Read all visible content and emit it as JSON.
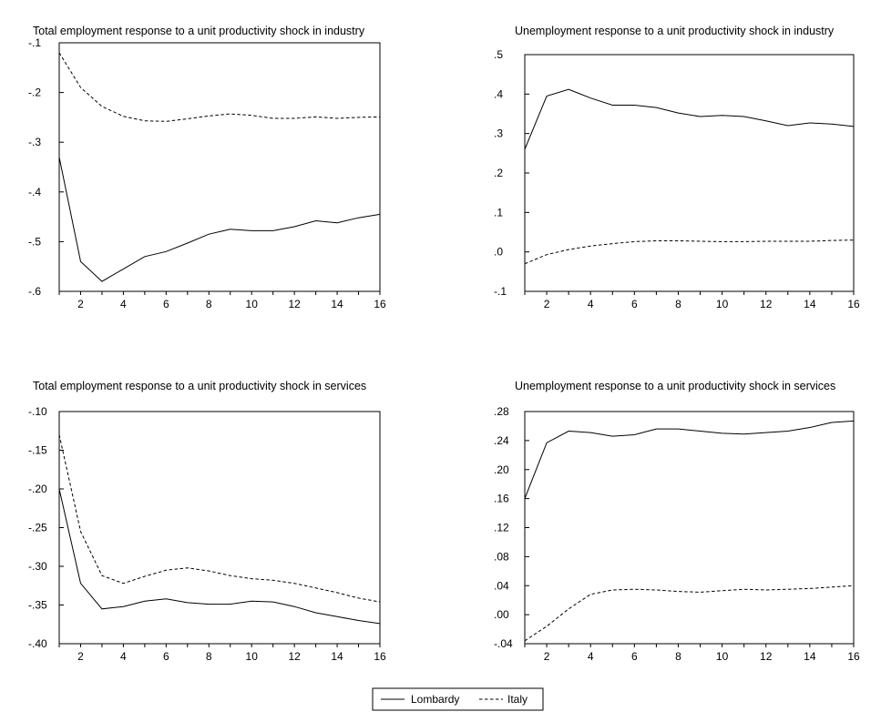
{
  "legend": {
    "items": [
      {
        "label": "Lombardy",
        "style": "solid"
      },
      {
        "label": "Italy",
        "style": "dashed"
      }
    ],
    "placement": "bottom-center"
  },
  "chart_data": [
    {
      "type": "line",
      "title": "Total employment response to a unit productivity shock in industry",
      "xlabel": "",
      "ylabel": "",
      "x": [
        1,
        2,
        3,
        4,
        5,
        6,
        7,
        8,
        9,
        10,
        11,
        12,
        13,
        14,
        15,
        16
      ],
      "xticks": [
        2,
        4,
        6,
        8,
        10,
        12,
        14,
        16
      ],
      "xlim": [
        1,
        16
      ],
      "ylim": [
        -0.6,
        -0.1
      ],
      "yticks": [
        -0.6,
        -0.5,
        -0.4,
        -0.3,
        -0.2,
        -0.1
      ],
      "ytick_labels": [
        "-.6",
        "-.5",
        "-.4",
        "-.3",
        "-.2",
        "-.1"
      ],
      "grid": false,
      "series": [
        {
          "name": "Lombardy",
          "style": "solid",
          "values": [
            -0.33,
            -0.54,
            -0.58,
            -0.555,
            -0.53,
            -0.52,
            -0.503,
            -0.485,
            -0.475,
            -0.478,
            -0.478,
            -0.47,
            -0.458,
            -0.462,
            -0.452,
            -0.445
          ]
        },
        {
          "name": "Italy",
          "style": "dashed",
          "values": [
            -0.12,
            -0.19,
            -0.228,
            -0.248,
            -0.257,
            -0.258,
            -0.253,
            -0.247,
            -0.243,
            -0.246,
            -0.252,
            -0.252,
            -0.249,
            -0.252,
            -0.25,
            -0.249
          ]
        }
      ]
    },
    {
      "type": "line",
      "title": "Unemployment response to a unit productivity shock in industry",
      "xlabel": "",
      "ylabel": "",
      "x": [
        1,
        2,
        3,
        4,
        5,
        6,
        7,
        8,
        9,
        10,
        11,
        12,
        13,
        14,
        15,
        16
      ],
      "xticks": [
        2,
        4,
        6,
        8,
        10,
        12,
        14,
        16
      ],
      "xlim": [
        1,
        16
      ],
      "ylim": [
        -0.1,
        0.5
      ],
      "yticks": [
        -0.1,
        0.0,
        0.1,
        0.2,
        0.3,
        0.4,
        0.5
      ],
      "ytick_labels": [
        "-.1",
        ".0",
        ".1",
        ".2",
        ".3",
        ".4",
        ".5"
      ],
      "grid": false,
      "series": [
        {
          "name": "Lombardy",
          "style": "solid",
          "values": [
            0.26,
            0.395,
            0.412,
            0.39,
            0.372,
            0.372,
            0.366,
            0.352,
            0.343,
            0.346,
            0.343,
            0.332,
            0.32,
            0.327,
            0.324,
            0.318
          ]
        },
        {
          "name": "Italy",
          "style": "dashed",
          "values": [
            -0.03,
            -0.007,
            0.006,
            0.015,
            0.021,
            0.026,
            0.028,
            0.028,
            0.027,
            0.026,
            0.026,
            0.027,
            0.027,
            0.027,
            0.029,
            0.03
          ]
        }
      ]
    },
    {
      "type": "line",
      "title": "Total employment response to a unit productivity shock in services",
      "xlabel": "",
      "ylabel": "",
      "x": [
        1,
        2,
        3,
        4,
        5,
        6,
        7,
        8,
        9,
        10,
        11,
        12,
        13,
        14,
        15,
        16
      ],
      "xticks": [
        2,
        4,
        6,
        8,
        10,
        12,
        14,
        16
      ],
      "xlim": [
        1,
        16
      ],
      "ylim": [
        -0.4,
        -0.1
      ],
      "yticks": [
        -0.4,
        -0.35,
        -0.3,
        -0.25,
        -0.2,
        -0.15,
        -0.1
      ],
      "ytick_labels": [
        "-.40",
        "-.35",
        "-.30",
        "-.25",
        "-.20",
        "-.15",
        "-.10"
      ],
      "grid": false,
      "series": [
        {
          "name": "Lombardy",
          "style": "solid",
          "values": [
            -0.2,
            -0.322,
            -0.355,
            -0.352,
            -0.345,
            -0.342,
            -0.347,
            -0.349,
            -0.349,
            -0.345,
            -0.346,
            -0.352,
            -0.36,
            -0.365,
            -0.37,
            -0.374
          ]
        },
        {
          "name": "Italy",
          "style": "dashed",
          "values": [
            -0.13,
            -0.255,
            -0.312,
            -0.322,
            -0.313,
            -0.305,
            -0.302,
            -0.306,
            -0.312,
            -0.316,
            -0.318,
            -0.322,
            -0.328,
            -0.334,
            -0.341,
            -0.346
          ]
        }
      ]
    },
    {
      "type": "line",
      "title": "Unemployment response to a unit productivity shock in services",
      "xlabel": "",
      "ylabel": "",
      "x": [
        1,
        2,
        3,
        4,
        5,
        6,
        7,
        8,
        9,
        10,
        11,
        12,
        13,
        14,
        15,
        16
      ],
      "xticks": [
        2,
        4,
        6,
        8,
        10,
        12,
        14,
        16
      ],
      "xlim": [
        1,
        16
      ],
      "ylim": [
        -0.04,
        0.28
      ],
      "yticks": [
        -0.04,
        0.0,
        0.04,
        0.08,
        0.12,
        0.16,
        0.2,
        0.24,
        0.28
      ],
      "ytick_labels": [
        "-.04",
        ".00",
        ".04",
        ".08",
        ".12",
        ".16",
        ".20",
        ".24",
        ".28"
      ],
      "grid": false,
      "series": [
        {
          "name": "Lombardy",
          "style": "solid",
          "values": [
            0.16,
            0.237,
            0.253,
            0.251,
            0.246,
            0.248,
            0.256,
            0.256,
            0.253,
            0.25,
            0.249,
            0.251,
            0.253,
            0.258,
            0.265,
            0.267
          ]
        },
        {
          "name": "Italy",
          "style": "dashed",
          "values": [
            -0.036,
            -0.016,
            0.008,
            0.028,
            0.034,
            0.035,
            0.034,
            0.032,
            0.031,
            0.033,
            0.035,
            0.034,
            0.035,
            0.036,
            0.038,
            0.04
          ]
        }
      ]
    }
  ]
}
